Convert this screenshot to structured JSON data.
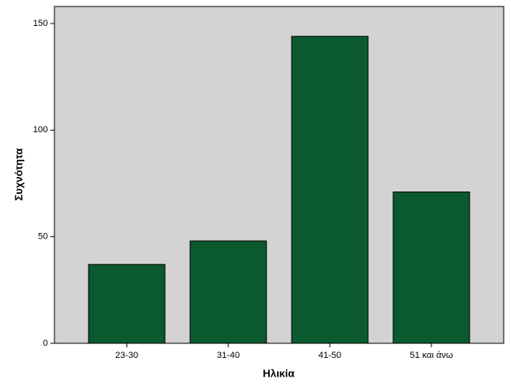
{
  "chart_data": {
    "type": "bar",
    "x_label": "Ηλικία",
    "y_label": "Συχνότητα",
    "categories": [
      "23-30",
      "31-40",
      "41-50",
      "51 και άνω"
    ],
    "values": [
      37,
      48,
      144,
      71
    ],
    "color": "#0b5a2f",
    "ylim": [
      0,
      158
    ],
    "yticks": [
      0,
      50,
      100,
      150
    ],
    "background": "#d3d3d3"
  }
}
